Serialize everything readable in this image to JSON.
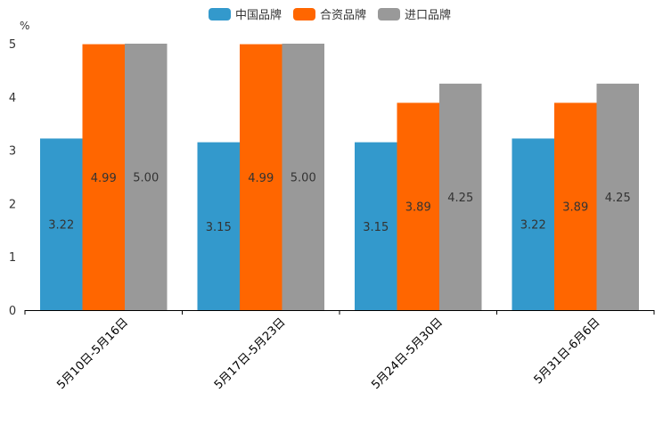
{
  "chart_data": {
    "type": "bar",
    "title": "",
    "xlabel": "",
    "ylabel": "%",
    "ylim": [
      0,
      5
    ],
    "yticks": [
      "0",
      "1",
      "2",
      "3",
      "4",
      "5"
    ],
    "categories": [
      "5月10日-5月16日",
      "5月17日-5月23日",
      "5月24日-5月30日",
      "5月31日-6月6日"
    ],
    "series": [
      {
        "name": "中国品牌",
        "color": "#3399cc",
        "values": [
          3.22,
          3.15,
          3.15,
          3.22
        ],
        "labels": [
          "3.22",
          "3.15",
          "3.15",
          "3.22"
        ]
      },
      {
        "name": "合资品牌",
        "color": "#ff6600",
        "values": [
          4.99,
          4.99,
          3.89,
          3.89
        ],
        "labels": [
          "4.99",
          "4.99",
          "3.89",
          "3.89"
        ]
      },
      {
        "name": "进口品牌",
        "color": "#999999",
        "values": [
          5.0,
          5.0,
          4.25,
          4.25
        ],
        "labels": [
          "5.00",
          "5.00",
          "4.25",
          "4.25"
        ]
      }
    ],
    "legend": "top-center",
    "grid": false
  }
}
